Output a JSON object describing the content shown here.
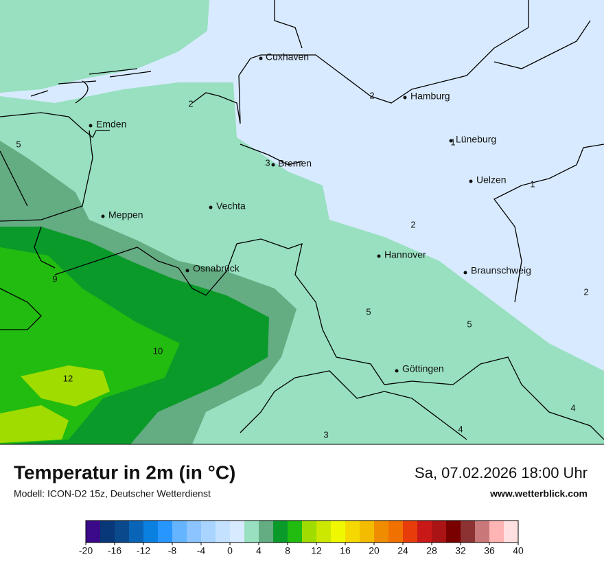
{
  "map": {
    "cities": [
      "Cuxhaven",
      "Hamburg",
      "Emden",
      "Lüneburg",
      "Bremen",
      "Uelzen",
      "Vechta",
      "Meppen",
      "Hannover",
      "Osnabrück",
      "Braunschweig",
      "Göttingen"
    ],
    "contour_labels": [
      "2",
      "2",
      "1",
      "3",
      "1",
      "2",
      "5",
      "9",
      "5",
      "5",
      "2",
      "10",
      "12",
      "3",
      "4",
      "4"
    ]
  },
  "legend": {
    "title": "Temperatur in 2m (in °C)",
    "model": "Modell: ICON-D2 15z, Deutscher Wetterdienst",
    "date": "Sa, 07.02.2026 18:00 Uhr",
    "website": "www.wetterblick.com",
    "colorbar": {
      "bins": [
        -20,
        -18,
        -16,
        -14,
        -12,
        -10,
        -8,
        -6,
        -4,
        -2,
        0,
        2,
        4,
        6,
        8,
        10,
        12,
        14,
        16,
        18,
        20,
        22,
        24,
        26,
        28,
        30,
        32,
        34,
        36,
        38,
        40
      ],
      "colors": [
        "#3b0a8a",
        "#083878",
        "#0a4a8c",
        "#0a64b8",
        "#0a80e0",
        "#2896ff",
        "#64b4ff",
        "#8cc4ff",
        "#a8d4ff",
        "#c4e2ff",
        "#d8eaff",
        "#98e0c0",
        "#64ac82",
        "#0a9a2a",
        "#22bb10",
        "#a0dc00",
        "#cce800",
        "#f0f800",
        "#f4d800",
        "#f4bc00",
        "#f08c00",
        "#f07000",
        "#e83c0a",
        "#c81818",
        "#aa1414",
        "#7a0000",
        "#8c3232",
        "#c87878",
        "#ffb4b4",
        "#ffe0e0"
      ],
      "ticks": [
        -20,
        -16,
        -12,
        -8,
        -4,
        0,
        4,
        8,
        12,
        16,
        20,
        24,
        28,
        32,
        36,
        40
      ]
    }
  }
}
